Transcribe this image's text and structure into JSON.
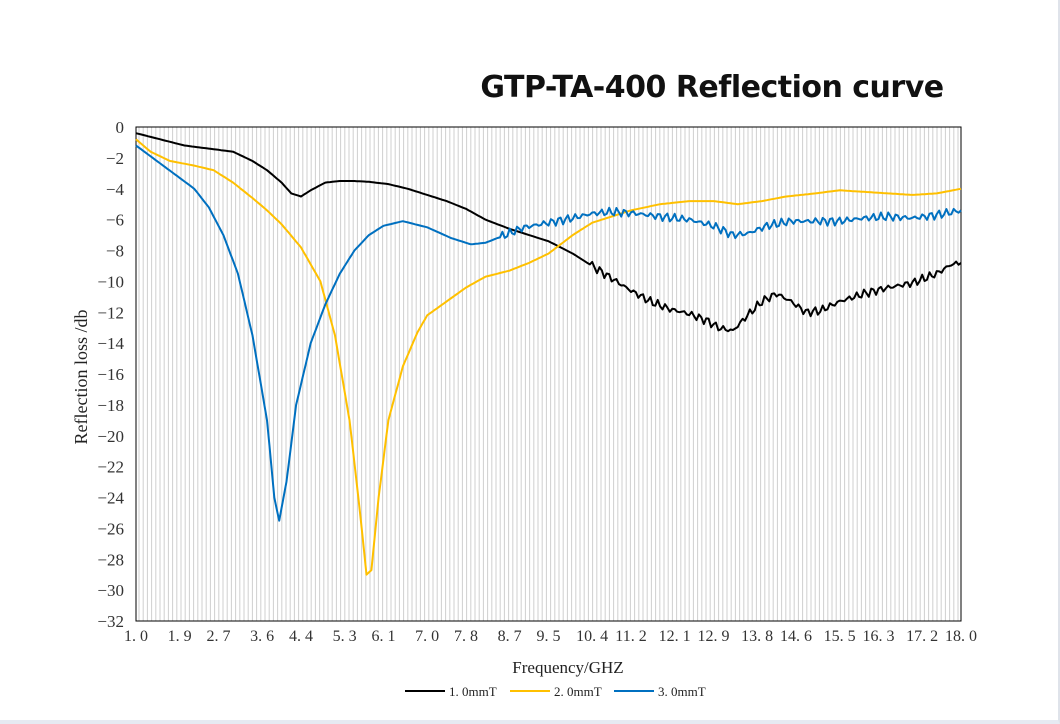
{
  "chart_data": {
    "type": "line",
    "title": "GTP-TA-400 Reflection curve",
    "xlabel": "Frequency/GHZ",
    "ylabel": "Reflection loss /db",
    "xlim": [
      1.0,
      18.0
    ],
    "ylim": [
      -32,
      0
    ],
    "x_ticks": [
      1.0,
      1.9,
      2.7,
      3.6,
      4.4,
      5.3,
      6.1,
      7.0,
      7.8,
      8.7,
      9.5,
      10.4,
      11.2,
      12.1,
      12.9,
      13.8,
      14.6,
      15.5,
      16.3,
      17.2,
      18.0
    ],
    "x_tick_labels": [
      "1. 0",
      "1. 9",
      "2. 7",
      "3. 6",
      "4. 4",
      "5. 3",
      "6. 1",
      "7. 0",
      "7. 8",
      "8. 7",
      "9. 5",
      "10. 4",
      "11. 2",
      "12. 1",
      "12. 9",
      "13. 8",
      "14. 6",
      "15. 5",
      "16. 3",
      "17. 2",
      "18. 0"
    ],
    "y_ticks": [
      0,
      -2,
      -4,
      -6,
      -8,
      -10,
      -12,
      -14,
      -16,
      -18,
      -20,
      -22,
      -24,
      -26,
      -28,
      -30,
      -32
    ],
    "y_tick_labels": [
      "0",
      "−2",
      "−4",
      "−6",
      "−8",
      "−10",
      "−12",
      "−14",
      "−16",
      "−18",
      "−20",
      "−22",
      "−24",
      "−26",
      "−28",
      "−30",
      "−32"
    ],
    "grid": "vertical",
    "legend_position": "bottom",
    "series": [
      {
        "name": "1. 0mmT",
        "color": "#000000",
        "points": [
          [
            1.0,
            -0.4
          ],
          [
            1.5,
            -0.8
          ],
          [
            2.0,
            -1.2
          ],
          [
            2.5,
            -1.4
          ],
          [
            3.0,
            -1.6
          ],
          [
            3.4,
            -2.2
          ],
          [
            3.7,
            -2.8
          ],
          [
            4.0,
            -3.6
          ],
          [
            4.2,
            -4.3
          ],
          [
            4.4,
            -4.5
          ],
          [
            4.6,
            -4.1
          ],
          [
            4.9,
            -3.6
          ],
          [
            5.2,
            -3.5
          ],
          [
            5.5,
            -3.5
          ],
          [
            5.8,
            -3.55
          ],
          [
            6.2,
            -3.7
          ],
          [
            6.6,
            -4.0
          ],
          [
            7.0,
            -4.4
          ],
          [
            7.4,
            -4.8
          ],
          [
            7.8,
            -5.3
          ],
          [
            8.2,
            -6.0
          ],
          [
            8.7,
            -6.6
          ],
          [
            9.2,
            -7.1
          ],
          [
            9.5,
            -7.4
          ],
          [
            10.0,
            -8.2
          ],
          [
            10.4,
            -9.0
          ],
          [
            10.8,
            -9.8
          ],
          [
            11.2,
            -10.6
          ],
          [
            11.6,
            -11.3
          ],
          [
            12.0,
            -11.8
          ],
          [
            12.4,
            -12.1
          ],
          [
            12.8,
            -12.6
          ],
          [
            13.0,
            -13.0
          ],
          [
            13.3,
            -13.2
          ],
          [
            13.6,
            -12.2
          ],
          [
            13.9,
            -11.3
          ],
          [
            14.2,
            -10.8
          ],
          [
            14.5,
            -11.3
          ],
          [
            14.8,
            -12.0
          ],
          [
            15.1,
            -11.9
          ],
          [
            15.5,
            -11.3
          ],
          [
            16.0,
            -10.8
          ],
          [
            16.5,
            -10.4
          ],
          [
            17.0,
            -10.1
          ],
          [
            17.5,
            -9.5
          ],
          [
            17.8,
            -8.9
          ],
          [
            18.0,
            -8.8
          ]
        ],
        "noisy_from": 10.4
      },
      {
        "name": "2. 0mmT",
        "color": "#FFC000",
        "points": [
          [
            1.0,
            -0.8
          ],
          [
            1.3,
            -1.6
          ],
          [
            1.7,
            -2.2
          ],
          [
            2.2,
            -2.5
          ],
          [
            2.6,
            -2.8
          ],
          [
            3.0,
            -3.6
          ],
          [
            3.4,
            -4.6
          ],
          [
            3.7,
            -5.4
          ],
          [
            4.0,
            -6.3
          ],
          [
            4.4,
            -7.8
          ],
          [
            4.8,
            -10.0
          ],
          [
            5.1,
            -13.5
          ],
          [
            5.4,
            -19.0
          ],
          [
            5.6,
            -24.5
          ],
          [
            5.75,
            -29.0
          ],
          [
            5.85,
            -28.7
          ],
          [
            6.0,
            -24.0
          ],
          [
            6.2,
            -19.0
          ],
          [
            6.5,
            -15.5
          ],
          [
            6.8,
            -13.3
          ],
          [
            7.0,
            -12.2
          ],
          [
            7.4,
            -11.3
          ],
          [
            7.8,
            -10.4
          ],
          [
            8.2,
            -9.7
          ],
          [
            8.7,
            -9.3
          ],
          [
            9.1,
            -8.8
          ],
          [
            9.5,
            -8.2
          ],
          [
            10.0,
            -7.0
          ],
          [
            10.4,
            -6.2
          ],
          [
            10.8,
            -5.8
          ],
          [
            11.2,
            -5.4
          ],
          [
            11.8,
            -5.0
          ],
          [
            12.4,
            -4.8
          ],
          [
            12.9,
            -4.8
          ],
          [
            13.4,
            -5.0
          ],
          [
            13.9,
            -4.8
          ],
          [
            14.4,
            -4.5
          ],
          [
            15.0,
            -4.3
          ],
          [
            15.5,
            -4.1
          ],
          [
            16.0,
            -4.2
          ],
          [
            16.5,
            -4.3
          ],
          [
            17.0,
            -4.4
          ],
          [
            17.5,
            -4.3
          ],
          [
            18.0,
            -4.0
          ]
        ],
        "noisy_from": 99
      },
      {
        "name": "3. 0mmT",
        "color": "#0070C0",
        "points": [
          [
            1.0,
            -1.2
          ],
          [
            1.3,
            -1.9
          ],
          [
            1.6,
            -2.6
          ],
          [
            1.9,
            -3.3
          ],
          [
            2.2,
            -4.0
          ],
          [
            2.5,
            -5.2
          ],
          [
            2.8,
            -7.0
          ],
          [
            3.1,
            -9.5
          ],
          [
            3.4,
            -13.5
          ],
          [
            3.7,
            -19.0
          ],
          [
            3.85,
            -24.0
          ],
          [
            3.95,
            -25.5
          ],
          [
            4.1,
            -23.0
          ],
          [
            4.3,
            -18.0
          ],
          [
            4.6,
            -14.0
          ],
          [
            4.9,
            -11.5
          ],
          [
            5.2,
            -9.5
          ],
          [
            5.5,
            -8.0
          ],
          [
            5.8,
            -7.0
          ],
          [
            6.1,
            -6.4
          ],
          [
            6.5,
            -6.1
          ],
          [
            7.0,
            -6.5
          ],
          [
            7.5,
            -7.2
          ],
          [
            7.9,
            -7.6
          ],
          [
            8.2,
            -7.5
          ],
          [
            8.6,
            -7.0
          ],
          [
            9.0,
            -6.5
          ],
          [
            9.5,
            -6.2
          ],
          [
            10.0,
            -5.9
          ],
          [
            10.4,
            -5.6
          ],
          [
            10.8,
            -5.5
          ],
          [
            11.3,
            -5.6
          ],
          [
            11.8,
            -5.8
          ],
          [
            12.4,
            -6.0
          ],
          [
            12.9,
            -6.4
          ],
          [
            13.3,
            -7.0
          ],
          [
            13.6,
            -6.9
          ],
          [
            14.0,
            -6.4
          ],
          [
            14.5,
            -6.1
          ],
          [
            15.0,
            -6.1
          ],
          [
            15.5,
            -6.1
          ],
          [
            16.0,
            -5.9
          ],
          [
            16.5,
            -5.8
          ],
          [
            17.0,
            -5.9
          ],
          [
            17.5,
            -5.7
          ],
          [
            18.0,
            -5.4
          ]
        ],
        "noisy_from": 8.5
      }
    ]
  }
}
